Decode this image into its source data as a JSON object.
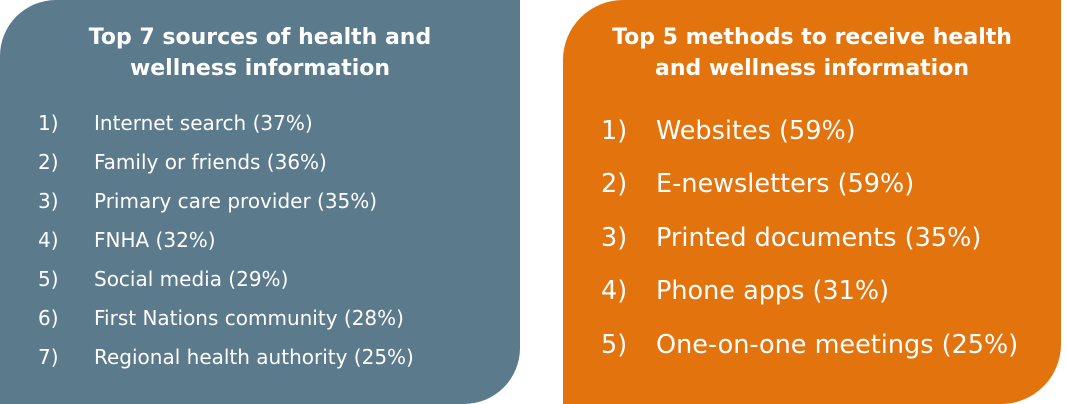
{
  "left_panel": {
    "title_line1": "Top 7 sources of health and",
    "title_line2": "wellness information",
    "items": [
      {
        "num": "1)",
        "text": "Internet search (37%)"
      },
      {
        "num": "2)",
        "text": "Family or friends (36%)"
      },
      {
        "num": "3)",
        "text": "Primary care provider (35%)"
      },
      {
        "num": "4)",
        "text": "FNHA (32%)"
      },
      {
        "num": "5)",
        "text": "Social media (29%)"
      },
      {
        "num": "6)",
        "text": "First Nations community (28%)"
      },
      {
        "num": "7)",
        "text": "Regional health authority (25%)"
      }
    ],
    "color": "#5b7a8c"
  },
  "right_panel": {
    "title_line1": "Top 5 methods to receive health",
    "title_line2": "and wellness information",
    "items": [
      {
        "num": "1)",
        "text": "Websites (59%)"
      },
      {
        "num": "2)",
        "text": "E-newsletters (59%)"
      },
      {
        "num": "3)",
        "text": "Printed documents (35%)"
      },
      {
        "num": "4)",
        "text": "Phone apps (31%)"
      },
      {
        "num": "5)",
        "text": "One-on-one meetings (25%)"
      }
    ],
    "color": "#e2730d"
  }
}
